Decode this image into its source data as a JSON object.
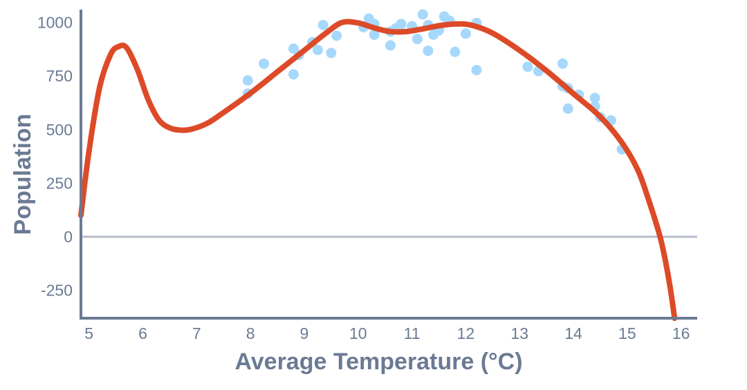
{
  "chart_data": {
    "type": "scatter",
    "xlabel": "Average Temperature (°C)",
    "ylabel": "Population",
    "xlim": [
      4.85,
      16.3
    ],
    "ylim": [
      -380,
      1060
    ],
    "x_tick_labels": [
      "5",
      "6",
      "7",
      "8",
      "9",
      "10",
      "11",
      "12",
      "13",
      "14",
      "15",
      "16"
    ],
    "y_tick_labels": [
      "1000",
      "750",
      "500",
      "250",
      "0",
      "-250"
    ],
    "grid": false,
    "zero_line": true,
    "series": [
      {
        "kind": "points",
        "color": "#a6d8fb",
        "points": [
          [
            7.95,
            730
          ],
          [
            7.95,
            668
          ],
          [
            8.25,
            808
          ],
          [
            8.8,
            878
          ],
          [
            8.8,
            758
          ],
          [
            8.9,
            848
          ],
          [
            9.15,
            908
          ],
          [
            9.25,
            872
          ],
          [
            9.35,
            988
          ],
          [
            9.5,
            858
          ],
          [
            9.6,
            938
          ],
          [
            10.1,
            978
          ],
          [
            10.2,
            1018
          ],
          [
            10.3,
            993
          ],
          [
            10.3,
            943
          ],
          [
            10.6,
            958
          ],
          [
            10.6,
            893
          ],
          [
            10.7,
            973
          ],
          [
            10.8,
            993
          ],
          [
            11.0,
            983
          ],
          [
            11.1,
            923
          ],
          [
            11.2,
            1038
          ],
          [
            11.3,
            868
          ],
          [
            11.3,
            988
          ],
          [
            11.4,
            943
          ],
          [
            11.5,
            963
          ],
          [
            11.6,
            1028
          ],
          [
            11.7,
            1008
          ],
          [
            11.8,
            863
          ],
          [
            12.0,
            948
          ],
          [
            12.2,
            998
          ],
          [
            12.2,
            778
          ],
          [
            13.15,
            793
          ],
          [
            13.35,
            773
          ],
          [
            13.8,
            808
          ],
          [
            13.8,
            703
          ],
          [
            13.9,
            693
          ],
          [
            13.9,
            598
          ],
          [
            14.1,
            663
          ],
          [
            14.4,
            648
          ],
          [
            14.4,
            608
          ],
          [
            14.5,
            558
          ],
          [
            14.7,
            543
          ],
          [
            14.9,
            408
          ]
        ]
      },
      {
        "kind": "curve",
        "color": "#dc4a28",
        "points": [
          [
            4.85,
            100
          ],
          [
            5.0,
            400
          ],
          [
            5.2,
            700
          ],
          [
            5.4,
            850
          ],
          [
            5.55,
            888
          ],
          [
            5.7,
            882
          ],
          [
            5.9,
            780
          ],
          [
            6.1,
            640
          ],
          [
            6.3,
            545
          ],
          [
            6.5,
            508
          ],
          [
            6.7,
            498
          ],
          [
            6.9,
            502
          ],
          [
            7.2,
            530
          ],
          [
            7.5,
            580
          ],
          [
            8.0,
            670
          ],
          [
            8.5,
            770
          ],
          [
            9.0,
            870
          ],
          [
            9.4,
            950
          ],
          [
            9.7,
            1000
          ],
          [
            10.0,
            998
          ],
          [
            10.3,
            975
          ],
          [
            10.6,
            958
          ],
          [
            10.9,
            958
          ],
          [
            11.2,
            970
          ],
          [
            11.5,
            985
          ],
          [
            11.8,
            993
          ],
          [
            12.1,
            988
          ],
          [
            12.5,
            950
          ],
          [
            13.0,
            870
          ],
          [
            13.5,
            775
          ],
          [
            14.0,
            668
          ],
          [
            14.5,
            560
          ],
          [
            14.9,
            440
          ],
          [
            15.2,
            310
          ],
          [
            15.4,
            170
          ],
          [
            15.6,
            10
          ],
          [
            15.7,
            -100
          ],
          [
            15.8,
            -240
          ],
          [
            15.88,
            -380
          ]
        ]
      }
    ]
  }
}
